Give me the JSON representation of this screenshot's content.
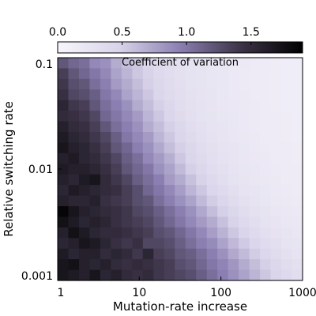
{
  "chart_data": {
    "type": "heatmap",
    "title": "",
    "xlabel": "Mutation-rate increase",
    "ylabel": "Relative switching rate",
    "x_scale": "log",
    "y_scale": "log",
    "xlim": [
      1,
      1000
    ],
    "ylim": [
      0.001,
      0.1
    ],
    "x_ticks": [
      1,
      10,
      100,
      1000
    ],
    "x_tick_labels": [
      "1",
      "10",
      "100",
      "1000"
    ],
    "y_ticks": [
      0.001,
      0.01,
      0.1
    ],
    "y_tick_labels": [
      "0.001",
      "0.01",
      "0.1"
    ],
    "grid": false,
    "colorbar": {
      "label": "Coefficient of variation",
      "placement": "top",
      "range": [
        0,
        1.9
      ],
      "ticks": [
        0.0,
        0.5,
        1.0,
        1.5
      ],
      "tick_labels": [
        "0.0",
        "0.5",
        "1.0",
        "1.5"
      ],
      "color_low": "#f7f5fb",
      "color_mid": "#8b7fb2",
      "color_high": "#000000"
    },
    "columns": 23,
    "rows": 21,
    "values": [
      [
        1.2,
        1.1,
        1.05,
        0.9,
        0.85,
        0.7,
        0.6,
        0.55,
        0.45,
        0.4,
        0.35,
        0.3,
        0.28,
        0.25,
        0.22,
        0.2,
        0.18,
        0.17,
        0.15,
        0.14,
        0.13,
        0.12,
        0.12
      ],
      [
        1.35,
        1.2,
        1.1,
        1.0,
        0.9,
        0.75,
        0.65,
        0.55,
        0.48,
        0.4,
        0.35,
        0.3,
        0.28,
        0.25,
        0.22,
        0.2,
        0.18,
        0.16,
        0.15,
        0.14,
        0.13,
        0.12,
        0.12
      ],
      [
        1.4,
        1.25,
        1.2,
        1.05,
        0.95,
        0.8,
        0.7,
        0.6,
        0.5,
        0.42,
        0.36,
        0.32,
        0.28,
        0.25,
        0.22,
        0.2,
        0.18,
        0.16,
        0.15,
        0.14,
        0.13,
        0.12,
        0.12
      ],
      [
        1.45,
        1.3,
        1.25,
        1.15,
        1.0,
        0.9,
        0.75,
        0.65,
        0.55,
        0.45,
        0.38,
        0.33,
        0.29,
        0.26,
        0.23,
        0.2,
        0.18,
        0.17,
        0.15,
        0.14,
        0.13,
        0.12,
        0.12
      ],
      [
        1.55,
        1.4,
        1.35,
        1.2,
        1.05,
        0.95,
        0.85,
        0.7,
        0.6,
        0.5,
        0.42,
        0.35,
        0.3,
        0.27,
        0.24,
        0.21,
        0.19,
        0.17,
        0.16,
        0.14,
        0.13,
        0.12,
        0.12
      ],
      [
        1.5,
        1.45,
        1.4,
        1.3,
        1.1,
        1.0,
        0.9,
        0.8,
        0.65,
        0.55,
        0.45,
        0.38,
        0.32,
        0.28,
        0.25,
        0.22,
        0.2,
        0.18,
        0.16,
        0.15,
        0.14,
        0.13,
        0.12
      ],
      [
        1.6,
        1.5,
        1.45,
        1.35,
        1.2,
        1.05,
        0.95,
        0.85,
        0.7,
        0.6,
        0.5,
        0.42,
        0.35,
        0.3,
        0.26,
        0.23,
        0.2,
        0.18,
        0.16,
        0.15,
        0.14,
        0.13,
        0.12
      ],
      [
        1.65,
        1.55,
        1.5,
        1.4,
        1.3,
        1.15,
        1.0,
        0.9,
        0.8,
        0.65,
        0.55,
        0.45,
        0.38,
        0.32,
        0.28,
        0.24,
        0.21,
        0.19,
        0.17,
        0.15,
        0.14,
        0.13,
        0.12
      ],
      [
        1.7,
        1.6,
        1.55,
        1.45,
        1.35,
        1.2,
        1.1,
        0.95,
        0.85,
        0.72,
        0.6,
        0.5,
        0.42,
        0.35,
        0.3,
        0.26,
        0.23,
        0.2,
        0.18,
        0.16,
        0.15,
        0.14,
        0.13
      ],
      [
        1.6,
        1.65,
        1.55,
        1.5,
        1.4,
        1.3,
        1.15,
        1.05,
        0.9,
        0.8,
        0.68,
        0.55,
        0.45,
        0.38,
        0.32,
        0.28,
        0.24,
        0.21,
        0.19,
        0.17,
        0.15,
        0.14,
        0.13
      ],
      [
        1.65,
        1.6,
        1.6,
        1.55,
        1.45,
        1.35,
        1.2,
        1.1,
        1.0,
        0.85,
        0.75,
        0.62,
        0.5,
        0.42,
        0.35,
        0.3,
        0.26,
        0.22,
        0.2,
        0.18,
        0.16,
        0.15,
        0.14
      ],
      [
        1.6,
        1.55,
        1.65,
        1.7,
        1.5,
        1.4,
        1.3,
        1.15,
        1.05,
        0.95,
        0.8,
        0.7,
        0.58,
        0.48,
        0.4,
        0.34,
        0.28,
        0.24,
        0.21,
        0.19,
        0.17,
        0.15,
        0.14
      ],
      [
        1.55,
        1.65,
        1.6,
        1.55,
        1.5,
        1.45,
        1.35,
        1.25,
        1.1,
        1.0,
        0.9,
        0.78,
        0.65,
        0.55,
        0.45,
        0.38,
        0.31,
        0.26,
        0.23,
        0.2,
        0.18,
        0.16,
        0.15
      ],
      [
        1.6,
        1.55,
        1.55,
        1.6,
        1.45,
        1.4,
        1.35,
        1.25,
        1.2,
        1.05,
        0.95,
        0.85,
        0.75,
        0.62,
        0.52,
        0.44,
        0.36,
        0.3,
        0.26,
        0.22,
        0.19,
        0.17,
        0.16
      ],
      [
        1.85,
        1.7,
        1.6,
        1.55,
        1.5,
        1.45,
        1.4,
        1.3,
        1.25,
        1.15,
        1.05,
        0.95,
        0.85,
        0.72,
        0.6,
        0.5,
        0.42,
        0.35,
        0.29,
        0.25,
        0.21,
        0.19,
        0.17
      ],
      [
        1.75,
        1.65,
        1.55,
        1.6,
        1.55,
        1.45,
        1.4,
        1.35,
        1.3,
        1.2,
        1.1,
        1.0,
        0.9,
        0.8,
        0.7,
        0.58,
        0.48,
        0.4,
        0.33,
        0.28,
        0.24,
        0.21,
        0.19
      ],
      [
        1.6,
        1.75,
        1.65,
        1.55,
        1.5,
        1.5,
        1.45,
        1.4,
        1.35,
        1.25,
        1.2,
        1.1,
        1.0,
        0.9,
        0.78,
        0.66,
        0.55,
        0.46,
        0.38,
        0.32,
        0.27,
        0.23,
        0.21
      ],
      [
        1.55,
        1.6,
        1.7,
        1.65,
        1.55,
        1.45,
        1.4,
        1.45,
        1.3,
        1.3,
        1.25,
        1.15,
        1.05,
        0.95,
        0.88,
        0.75,
        0.63,
        0.53,
        0.44,
        0.37,
        0.31,
        0.26,
        0.23
      ],
      [
        1.65,
        1.55,
        1.6,
        1.6,
        1.5,
        1.55,
        1.5,
        1.4,
        1.55,
        1.35,
        1.3,
        1.2,
        1.15,
        1.05,
        0.95,
        0.85,
        0.72,
        0.62,
        0.52,
        0.43,
        0.36,
        0.3,
        0.26
      ],
      [
        1.7,
        1.75,
        1.6,
        1.55,
        1.6,
        1.5,
        1.45,
        1.5,
        1.45,
        1.4,
        1.35,
        1.25,
        1.2,
        1.1,
        1.0,
        0.92,
        0.82,
        0.7,
        0.6,
        0.5,
        0.42,
        0.35,
        0.3
      ],
      [
        1.7,
        1.65,
        1.6,
        1.7,
        1.55,
        1.6,
        1.5,
        1.45,
        1.5,
        1.4,
        1.35,
        1.3,
        1.25,
        1.15,
        1.05,
        0.95,
        0.85,
        0.75,
        0.65,
        0.55,
        0.46,
        0.39,
        0.33
      ]
    ]
  }
}
